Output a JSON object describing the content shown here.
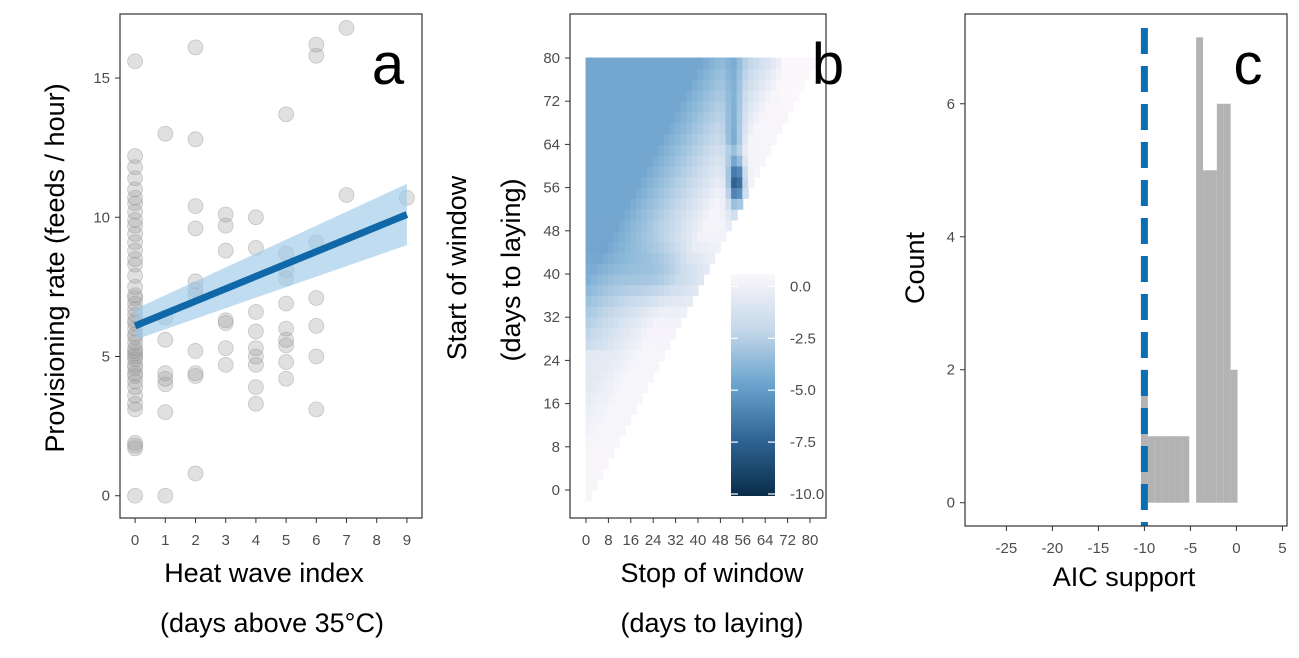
{
  "chart_data": [
    {
      "type": "scatter",
      "panel_label": "a",
      "xlabel": "Heat wave index",
      "xlabel2": "(days above 35°C)",
      "ylabel": "Provisioning rate (feeds / hour)",
      "xlim": [
        -0.5,
        9.5
      ],
      "ylim": [
        -0.8,
        17.3
      ],
      "xticks": [
        0,
        1,
        2,
        3,
        4,
        5,
        6,
        7,
        8,
        9
      ],
      "yticks": [
        0,
        5,
        10,
        15
      ],
      "points": [
        [
          0,
          0.0
        ],
        [
          0,
          1.7
        ],
        [
          0,
          1.9
        ],
        [
          0,
          1.8
        ],
        [
          0,
          3.1
        ],
        [
          0,
          3.3
        ],
        [
          0,
          3.6
        ],
        [
          0,
          3.9
        ],
        [
          0,
          4.1
        ],
        [
          0,
          4.3
        ],
        [
          0,
          4.4
        ],
        [
          0,
          4.6
        ],
        [
          0,
          4.7
        ],
        [
          0,
          4.9
        ],
        [
          0,
          5.0
        ],
        [
          0,
          5.1
        ],
        [
          0,
          5.2
        ],
        [
          0,
          5.3
        ],
        [
          0,
          5.5
        ],
        [
          0,
          5.7
        ],
        [
          0,
          5.8
        ],
        [
          0,
          6.0
        ],
        [
          0,
          6.2
        ],
        [
          0,
          6.3
        ],
        [
          0,
          6.5
        ],
        [
          0,
          6.7
        ],
        [
          0,
          6.9
        ],
        [
          0,
          7.1
        ],
        [
          0,
          7.2
        ],
        [
          0,
          7.5
        ],
        [
          0,
          7.9
        ],
        [
          0,
          8.3
        ],
        [
          0,
          8.5
        ],
        [
          0,
          8.8
        ],
        [
          0,
          9.1
        ],
        [
          0,
          9.4
        ],
        [
          0,
          9.7
        ],
        [
          0,
          9.9
        ],
        [
          0,
          10.2
        ],
        [
          0,
          10.5
        ],
        [
          0,
          10.7
        ],
        [
          0,
          11.0
        ],
        [
          0,
          11.4
        ],
        [
          0,
          11.8
        ],
        [
          0,
          12.2
        ],
        [
          0,
          15.6
        ],
        [
          1,
          0.0
        ],
        [
          1,
          3.0
        ],
        [
          1,
          4.0
        ],
        [
          1,
          4.2
        ],
        [
          1,
          4.4
        ],
        [
          1,
          5.6
        ],
        [
          1,
          6.4
        ],
        [
          1,
          13.0
        ],
        [
          2,
          0.8
        ],
        [
          2,
          4.3
        ],
        [
          2,
          4.4
        ],
        [
          2,
          5.2
        ],
        [
          2,
          7.2
        ],
        [
          2,
          7.4
        ],
        [
          2,
          7.7
        ],
        [
          2,
          9.6
        ],
        [
          2,
          10.4
        ],
        [
          2,
          12.8
        ],
        [
          2,
          16.1
        ],
        [
          3,
          4.7
        ],
        [
          3,
          5.3
        ],
        [
          3,
          6.2
        ],
        [
          3,
          6.3
        ],
        [
          3,
          8.8
        ],
        [
          3,
          9.7
        ],
        [
          3,
          10.1
        ],
        [
          4,
          3.3
        ],
        [
          4,
          3.9
        ],
        [
          4,
          4.7
        ],
        [
          4,
          5.0
        ],
        [
          4,
          5.3
        ],
        [
          4,
          5.9
        ],
        [
          4,
          6.6
        ],
        [
          4,
          8.9
        ],
        [
          4,
          10.0
        ],
        [
          5,
          4.2
        ],
        [
          5,
          4.8
        ],
        [
          5,
          5.4
        ],
        [
          5,
          5.6
        ],
        [
          5,
          6.0
        ],
        [
          5,
          6.9
        ],
        [
          5,
          7.8
        ],
        [
          5,
          8.1
        ],
        [
          5,
          8.7
        ],
        [
          5,
          13.7
        ],
        [
          6,
          3.1
        ],
        [
          6,
          5.0
        ],
        [
          6,
          6.1
        ],
        [
          6,
          7.1
        ],
        [
          6,
          9.1
        ],
        [
          6,
          15.8
        ],
        [
          6,
          16.2
        ],
        [
          7,
          10.8
        ],
        [
          7,
          16.8
        ],
        [
          9,
          10.7
        ]
      ],
      "regression": {
        "x": [
          0,
          9
        ],
        "y": [
          6.1,
          10.1
        ],
        "ci_lower": [
          5.6,
          9.0
        ],
        "ci_upper": [
          6.7,
          11.2
        ]
      }
    },
    {
      "type": "heatmap",
      "panel_label": "b",
      "xlabel": "Stop of window",
      "xlabel2": "(days to laying)",
      "ylabel": "Start of window",
      "ylabel2": "(days to laying)",
      "xticks": [
        "0",
        "8",
        "16",
        "24",
        "32",
        "40",
        "48",
        "56",
        "64",
        "72",
        "80"
      ],
      "yticks": [
        0,
        8,
        16,
        24,
        32,
        40,
        48,
        56,
        64,
        72,
        80
      ],
      "range": [
        0,
        80
      ],
      "color_min": -10.0,
      "color_max": 0.5,
      "legend_ticks": [
        0.0,
        -2.5,
        -5.0,
        -7.5,
        -10.0
      ],
      "legend_labels": [
        "0.0",
        "-2.5",
        "-5.0",
        "-7.5",
        "-10.0"
      ]
    },
    {
      "type": "bar",
      "panel_label": "c",
      "xlabel": "AIC support",
      "ylabel": "Count",
      "xlim": [
        -29.5,
        5.5
      ],
      "ylim": [
        -0.35,
        7.35
      ],
      "xticks": [
        -25,
        -20,
        -15,
        -10,
        -5,
        0,
        5
      ],
      "yticks": [
        0,
        2,
        4,
        6
      ],
      "bin_width": 0.75,
      "bins": [
        {
          "x": -10.0,
          "count": 2
        },
        {
          "x": -9.25,
          "count": 1
        },
        {
          "x": -8.5,
          "count": 1
        },
        {
          "x": -7.75,
          "count": 1
        },
        {
          "x": -7.0,
          "count": 1
        },
        {
          "x": -6.25,
          "count": 1
        },
        {
          "x": -5.5,
          "count": 1
        },
        {
          "x": -4.0,
          "count": 7
        },
        {
          "x": -3.25,
          "count": 5
        },
        {
          "x": -2.5,
          "count": 5
        },
        {
          "x": -1.75,
          "count": 6
        },
        {
          "x": -1.0,
          "count": 6
        },
        {
          "x": -0.25,
          "count": 2
        }
      ],
      "reference_line": -10,
      "reference_color": "#0d6eb3",
      "bar_color": "#b3b3b3"
    }
  ]
}
